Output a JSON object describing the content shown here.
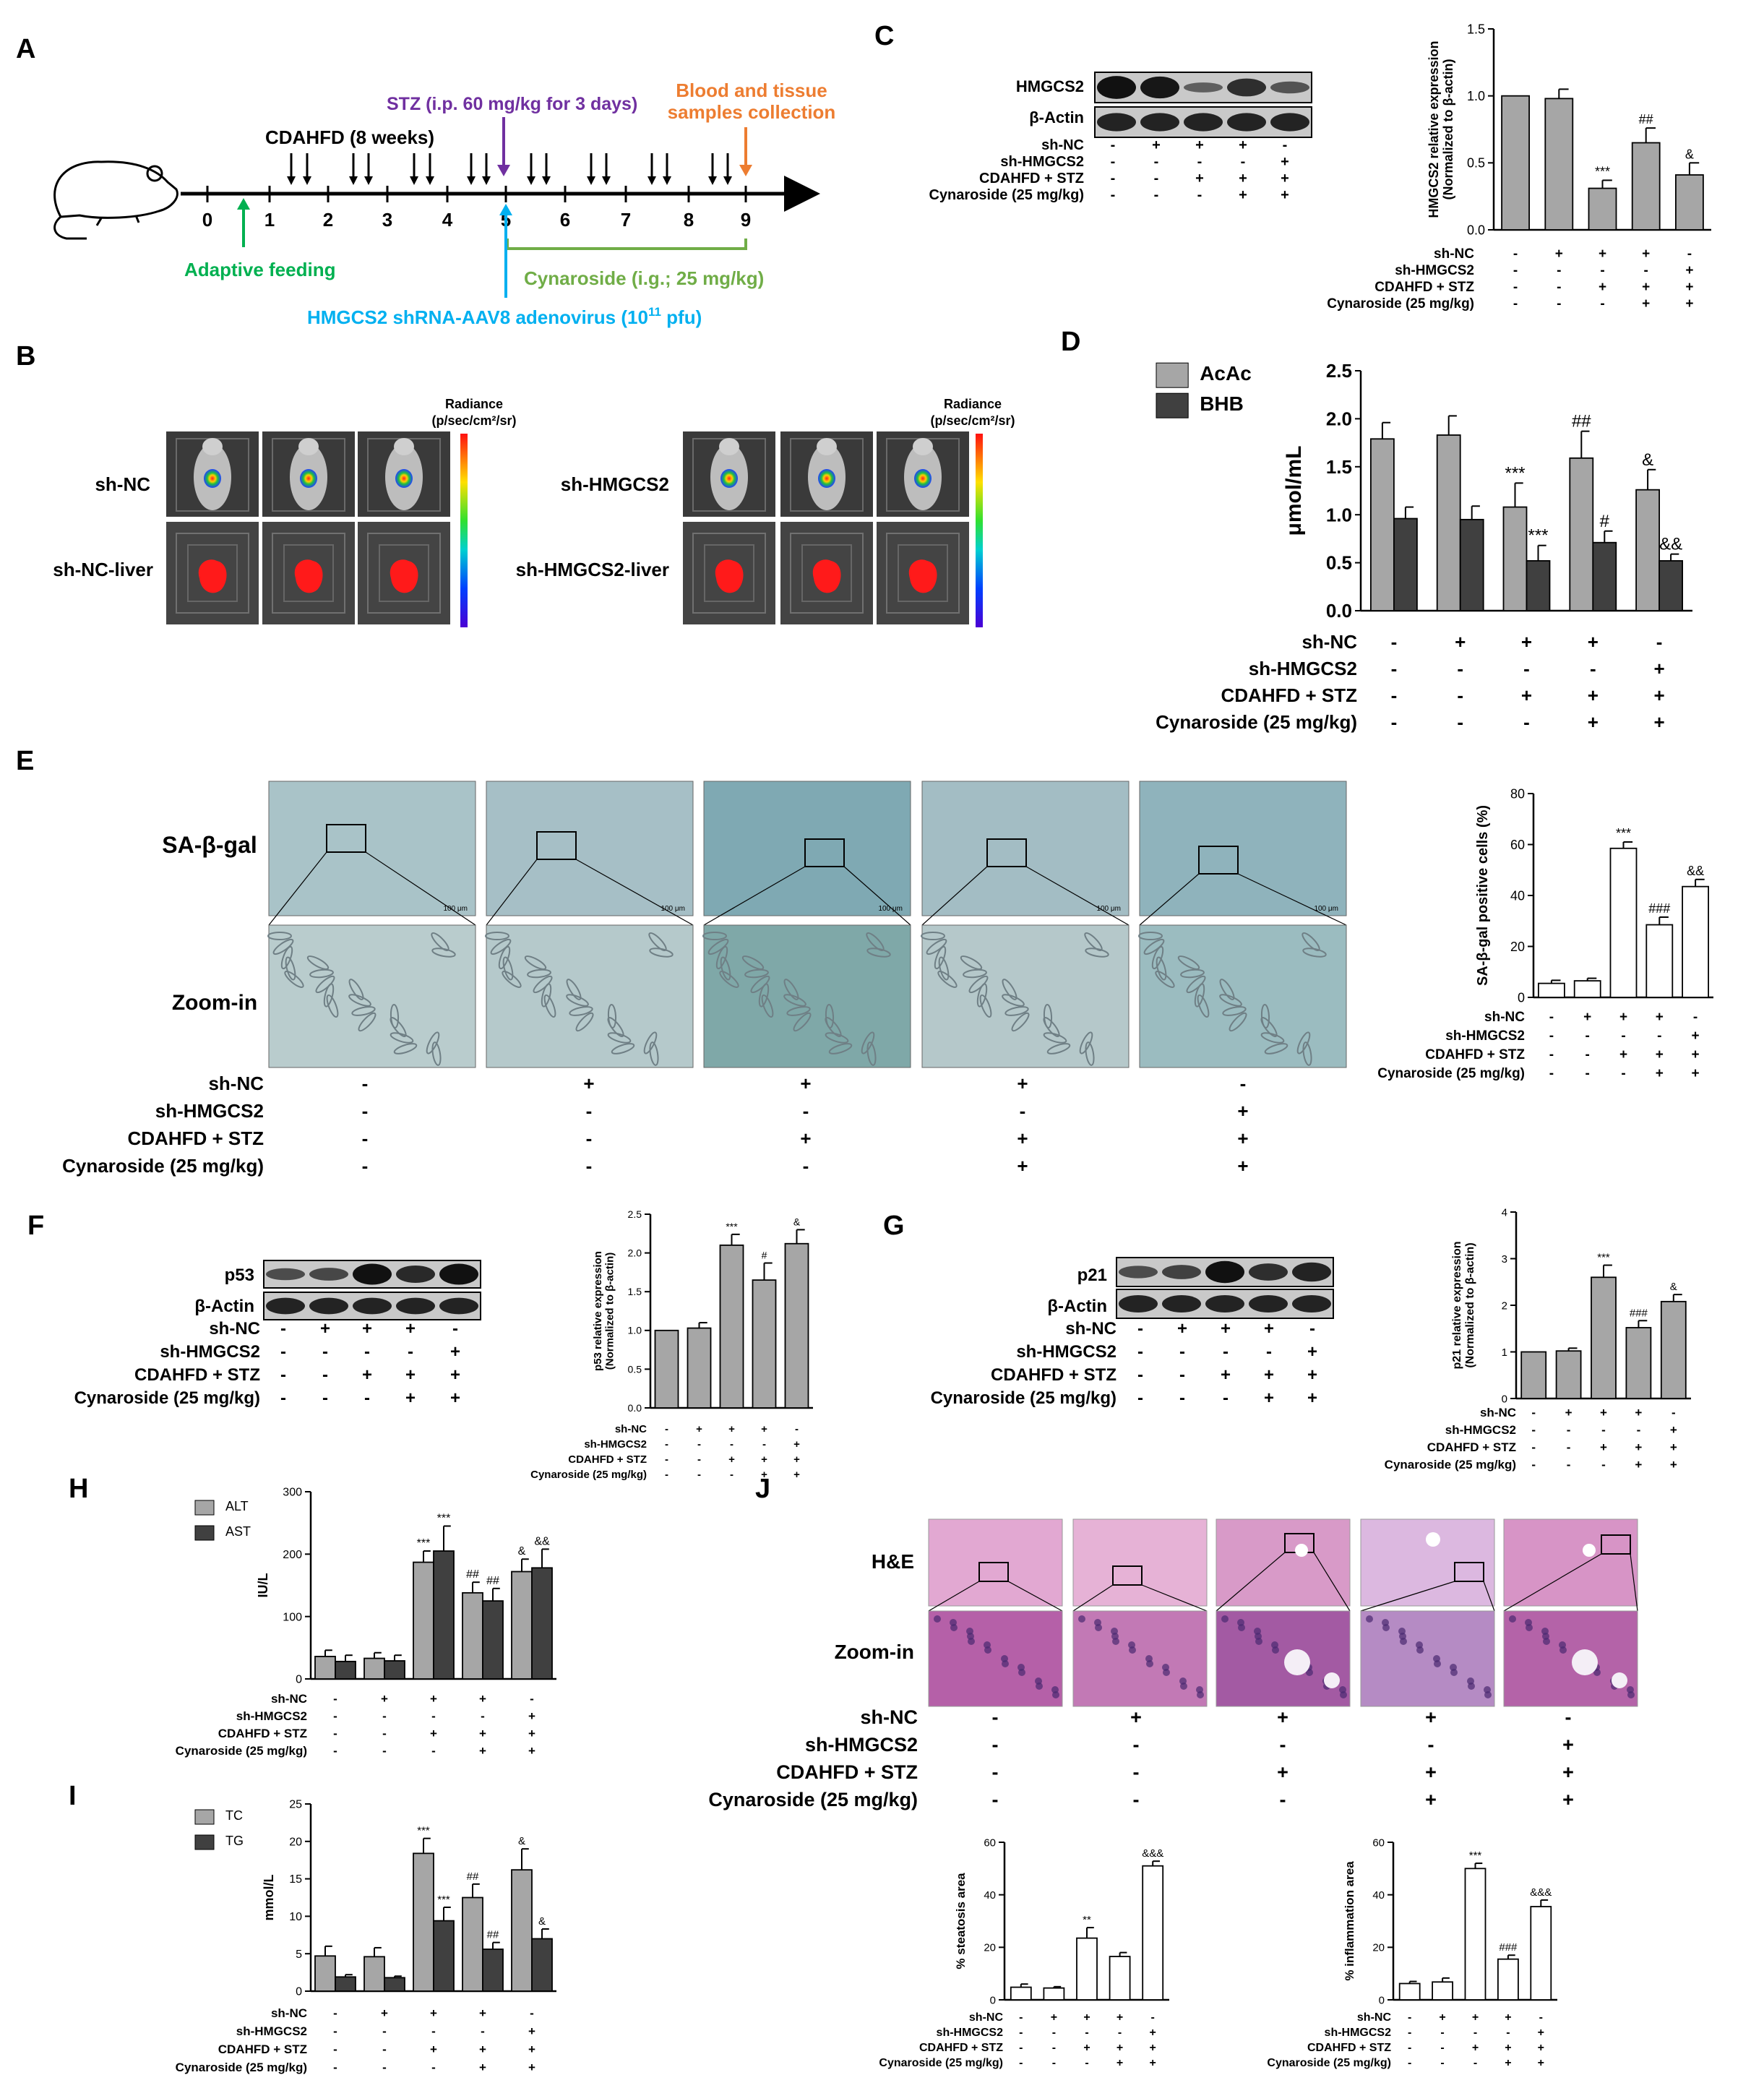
{
  "treat_labels": [
    "sh-NC",
    "sh-HMGCS2",
    "CDAHFD + STZ",
    "Cynaroside (25 mg/kg)"
  ],
  "signs": [
    [
      "-",
      "+",
      "+",
      "+",
      "-"
    ],
    [
      "-",
      "-",
      "-",
      "-",
      "+"
    ],
    [
      "-",
      "-",
      "+",
      "+",
      "+"
    ],
    [
      "-",
      "-",
      "-",
      "+",
      "+"
    ]
  ],
  "panelA": {
    "letter": "A",
    "stz": "STZ  (i.p. 60 mg/kg for 3 days)",
    "blood": [
      "Blood and tissue",
      "samples collection"
    ],
    "cdahfd": "CDAHFD (8 weeks)",
    "weeks": [
      "0",
      "1",
      "2",
      "3",
      "4",
      "5",
      "6",
      "7",
      "8",
      "9"
    ],
    "adaptive": "Adaptive feeding",
    "cynaroside": "Cynaroside (i.g.; 25 mg/kg)",
    "aav_prefix": "HMGCS2 shRNA-AAV8 adenovirus (10",
    "aav_exp": "11",
    "aav_suffix": " pfu)",
    "colors": {
      "stz": "#7030a0",
      "blood": "#ed7d31",
      "adaptive": "#00b050",
      "cynaroside": "#70ad47",
      "aav": "#00b0f0"
    }
  },
  "panelB": {
    "letter": "B",
    "radiance": [
      "Radiance",
      "(p/sec/cm²/sr)"
    ],
    "rows_left": [
      "sh-NC",
      "sh-NC-liver"
    ],
    "rows_right": [
      "sh-HMGCS2",
      "sh-HMGCS2-liver"
    ]
  },
  "panelC": {
    "letter": "C",
    "blot_labels": [
      "HMGCS2",
      "β-Actin"
    ],
    "chart_data": {
      "type": "bar",
      "ylabel": "HMGCS2 relative expression\n(Normalized to β-actin)",
      "ylim": [
        0,
        1.5
      ],
      "yticks": [
        "0.0",
        "0.5",
        "1.0",
        "1.5"
      ],
      "values": [
        1.0,
        0.98,
        0.31,
        0.65,
        0.41
      ],
      "errors": [
        0.0,
        0.07,
        0.06,
        0.11,
        0.09
      ],
      "annotations": [
        "",
        "",
        "***",
        "##",
        "&"
      ],
      "fill": "#a6a6a6"
    }
  },
  "panelD": {
    "letter": "D",
    "chart_data": {
      "type": "bar",
      "ylabel": "μmol/mL",
      "ylim": [
        0,
        2.5
      ],
      "yticks": [
        "0.0",
        "0.5",
        "1.0",
        "1.5",
        "2.0",
        "2.5"
      ],
      "series": [
        {
          "name": "AcAc",
          "values": [
            1.79,
            1.83,
            1.08,
            1.59,
            1.26
          ],
          "errors": [
            0.17,
            0.2,
            0.25,
            0.28,
            0.21
          ],
          "annotations": [
            "",
            "",
            "***",
            "##",
            "&"
          ],
          "color": "#a6a6a6"
        },
        {
          "name": "BHB",
          "values": [
            0.96,
            0.95,
            0.52,
            0.71,
            0.52
          ],
          "errors": [
            0.12,
            0.14,
            0.16,
            0.12,
            0.07
          ],
          "annotations": [
            "",
            "",
            "***",
            "#",
            "&&"
          ],
          "color": "#404040"
        }
      ]
    }
  },
  "panelE": {
    "letter": "E",
    "rows": [
      "SA-β-gal",
      "Zoom-in"
    ],
    "scale": "100 μm",
    "chart_data": {
      "type": "bar",
      "ylabel": "SA-β-gal positive cells (%)",
      "ylim": [
        0,
        80
      ],
      "yticks": [
        "0",
        "20",
        "40",
        "60",
        "80"
      ],
      "values": [
        5.5,
        6.5,
        58.5,
        28.5,
        43.5
      ],
      "errors": [
        1.2,
        1.0,
        2.5,
        3.0,
        2.8
      ],
      "annotations": [
        "",
        "",
        "***",
        "###",
        "&&"
      ],
      "fill": "#ffffff"
    }
  },
  "panelF": {
    "letter": "F",
    "blot_labels": [
      "p53",
      "β-Actin"
    ],
    "chart_data": {
      "type": "bar",
      "ylabel": "p53 relative expression\n(Normalized to β-actin)",
      "ylim": [
        0,
        2.5
      ],
      "yticks": [
        "0.0",
        "0.5",
        "1.0",
        "1.5",
        "2.0",
        "2.5"
      ],
      "values": [
        1.0,
        1.03,
        2.1,
        1.65,
        2.12
      ],
      "errors": [
        0.0,
        0.07,
        0.14,
        0.22,
        0.18
      ],
      "annotations": [
        "",
        "",
        "***",
        "#",
        "&"
      ],
      "fill": "#a6a6a6"
    }
  },
  "panelG": {
    "letter": "G",
    "blot_labels": [
      "p21",
      "β-Actin"
    ],
    "chart_data": {
      "type": "bar",
      "ylabel": "p21 relative expression\n(Normalized to β-actin)",
      "ylim": [
        0,
        4
      ],
      "yticks": [
        "0",
        "1",
        "2",
        "3",
        "4"
      ],
      "values": [
        1.0,
        1.02,
        2.6,
        1.52,
        2.08
      ],
      "errors": [
        0.0,
        0.06,
        0.26,
        0.15,
        0.15
      ],
      "annotations": [
        "",
        "",
        "***",
        "###",
        "&"
      ],
      "fill": "#a6a6a6"
    }
  },
  "panelH": {
    "letter": "H",
    "chart_data": {
      "type": "bar",
      "ylabel": "IU/L",
      "ylim": [
        0,
        300
      ],
      "yticks": [
        "0",
        "100",
        "200",
        "300"
      ],
      "series": [
        {
          "name": "ALT",
          "values": [
            36,
            33,
            187,
            138,
            172
          ],
          "errors": [
            10,
            9,
            18,
            17,
            20
          ],
          "annotations": [
            "",
            "",
            "***",
            "##",
            "&"
          ],
          "color": "#a6a6a6"
        },
        {
          "name": "AST",
          "values": [
            28,
            29,
            205,
            125,
            178
          ],
          "errors": [
            10,
            9,
            40,
            20,
            30
          ],
          "annotations": [
            "",
            "",
            "***",
            "##",
            "&&"
          ],
          "color": "#404040"
        }
      ]
    }
  },
  "panelI": {
    "letter": "I",
    "chart_data": {
      "type": "bar",
      "ylabel": "mmol/L",
      "ylim": [
        0,
        25
      ],
      "yticks": [
        "0",
        "5",
        "10",
        "15",
        "20",
        "25"
      ],
      "series": [
        {
          "name": "TC",
          "values": [
            4.7,
            4.6,
            18.4,
            12.5,
            16.2
          ],
          "errors": [
            1.3,
            1.2,
            2.0,
            1.8,
            2.8
          ],
          "annotations": [
            "",
            "",
            "***",
            "##",
            "&"
          ],
          "color": "#a6a6a6"
        },
        {
          "name": "TG",
          "values": [
            1.9,
            1.8,
            9.4,
            5.6,
            7.0
          ],
          "errors": [
            0.3,
            0.2,
            1.8,
            0.9,
            1.3
          ],
          "annotations": [
            "",
            "",
            "***",
            "##",
            "&"
          ],
          "color": "#404040"
        }
      ]
    }
  },
  "panelJ": {
    "letter": "J",
    "rows": [
      "H&E",
      "Zoom-in"
    ],
    "steatosis": {
      "type": "bar",
      "ylabel": "% steatosis area",
      "ylim": [
        0,
        60
      ],
      "yticks": [
        "0",
        "20",
        "40",
        "60"
      ],
      "values": [
        4.8,
        4.5,
        23.5,
        16.5,
        51.0
      ],
      "errors": [
        1.2,
        0.5,
        4.0,
        1.5,
        1.8
      ],
      "annotations": [
        "",
        "",
        "**",
        "",
        "&&&"
      ],
      "fill": "#ffffff"
    },
    "inflammation": {
      "type": "bar",
      "ylabel": "% inflammation area",
      "ylim": [
        0,
        60
      ],
      "yticks": [
        "0",
        "20",
        "40",
        "60"
      ],
      "values": [
        6.2,
        6.8,
        50.0,
        15.5,
        35.5
      ],
      "errors": [
        0.8,
        1.5,
        2.0,
        1.5,
        2.5
      ],
      "annotations": [
        "",
        "",
        "***",
        "###",
        "&&&"
      ],
      "fill": "#ffffff"
    }
  }
}
